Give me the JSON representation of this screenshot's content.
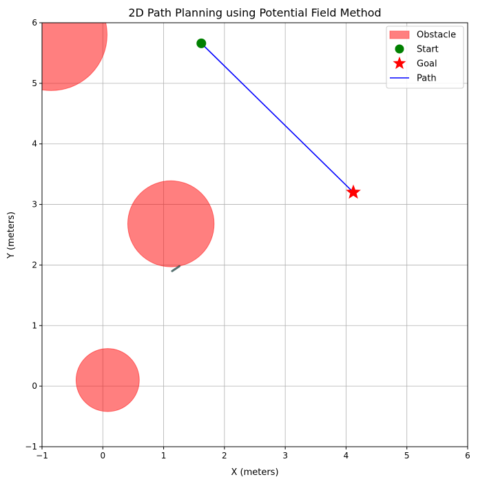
{
  "chart_data": {
    "type": "scatter",
    "title": "2D Path Planning using Potential Field Method",
    "xlabel": "X (meters)",
    "ylabel": "Y (meters)",
    "xlim": [
      -1,
      6
    ],
    "ylim": [
      -1,
      6
    ],
    "xticks": [
      "−1",
      "0",
      "1",
      "2",
      "3",
      "4",
      "5",
      "6"
    ],
    "yticks": [
      "−1",
      "0",
      "1",
      "2",
      "3",
      "4",
      "5",
      "6"
    ],
    "grid": true,
    "legend_position": "top-right",
    "legend": [
      {
        "label": "Obstacle",
        "marker": "patch",
        "color": "#ff7f7f"
      },
      {
        "label": "Start",
        "marker": "circle",
        "color": "#008000"
      },
      {
        "label": "Goal",
        "marker": "star",
        "color": "#ff0000"
      },
      {
        "label": "Path",
        "marker": "line",
        "color": "#0000ff"
      }
    ],
    "obstacles": [
      {
        "x": -0.85,
        "y": 5.8,
        "r": 0.92
      },
      {
        "x": 1.12,
        "y": 2.68,
        "r": 0.71
      },
      {
        "x": 0.08,
        "y": 0.1,
        "r": 0.52
      }
    ],
    "obstacle_color": "#ff0000",
    "start": {
      "x": 1.62,
      "y": 5.66,
      "color": "#008000"
    },
    "goal": {
      "x": 4.12,
      "y": 3.2,
      "color": "#ff0000"
    },
    "path": {
      "x": [
        1.62,
        4.12
      ],
      "y": [
        5.66,
        3.2
      ],
      "color": "#0000ff"
    },
    "arrow": {
      "x": 1.26,
      "y": 1.98,
      "dx": -0.12,
      "dy": -0.08,
      "color": "#2f4f4f"
    }
  }
}
